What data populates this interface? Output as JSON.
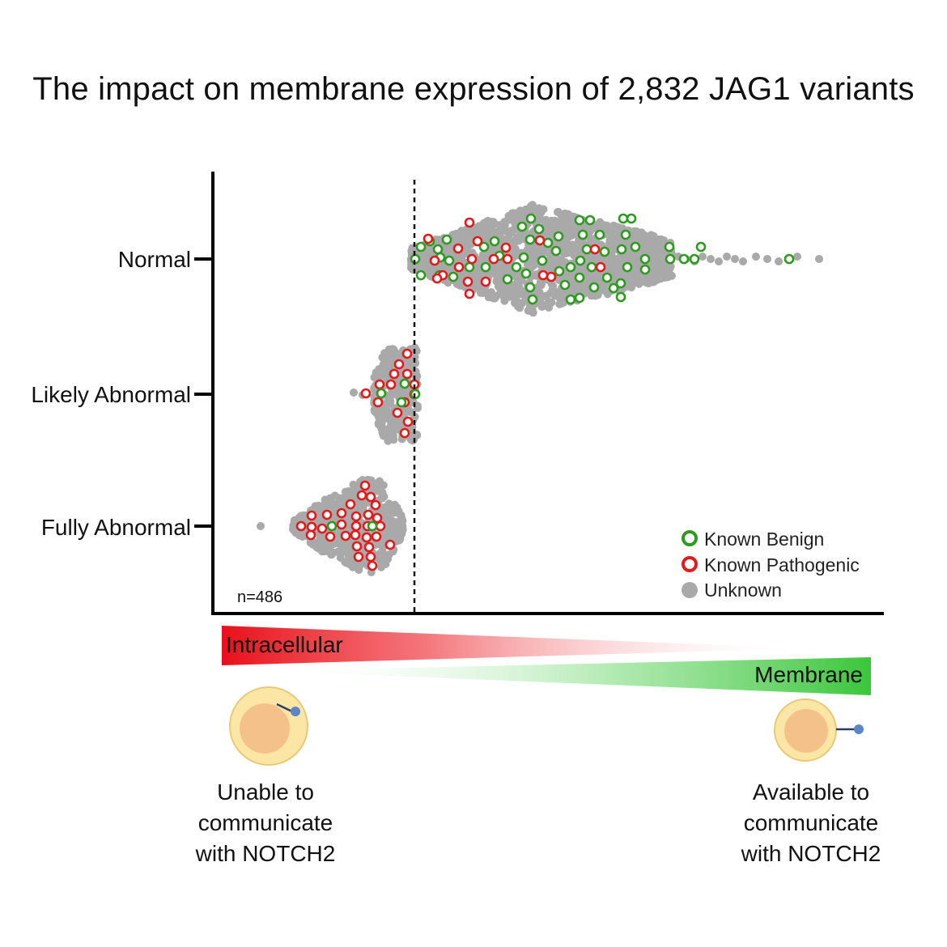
{
  "title": "The impact on membrane expression of 2,832 JAG1 variants",
  "chart_data": {
    "type": "scatter",
    "subtype": "beeswarm",
    "title": "The impact on membrane expression of 2,832 JAG1 variants",
    "categories": [
      "Normal",
      "Likely Abnormal",
      "Fully Abnormal"
    ],
    "n_label": "n=486",
    "legend": [
      {
        "label": "Known Benign",
        "color": "#2e9a1f",
        "style": "ring"
      },
      {
        "label": "Known Pathogenic",
        "color": "#e31a1c",
        "style": "ring"
      },
      {
        "label": "Unknown",
        "color": "#a9a9a9",
        "style": "filled"
      }
    ],
    "legend_position": "bottom-right",
    "threshold_line": "dashed vertical line between abnormal and normal groups",
    "colors": {
      "unknown": "#a9a9a9",
      "benign": "#2e9a1f",
      "pathogenic": "#e31a1c",
      "intracellular": "#e8101a",
      "membrane": "#3bc63b",
      "cell_outer": "#fbe6a6",
      "cell_inner": "#f5c18a",
      "receptor": "#5b86c6"
    }
  },
  "gradient": {
    "left_label": "Intracellular",
    "right_label": "Membrane"
  },
  "captions": {
    "left": [
      "Unable to",
      "communicate",
      "with NOTCH2"
    ],
    "right": [
      "Available to",
      "communicate",
      "with NOTCH2"
    ]
  }
}
